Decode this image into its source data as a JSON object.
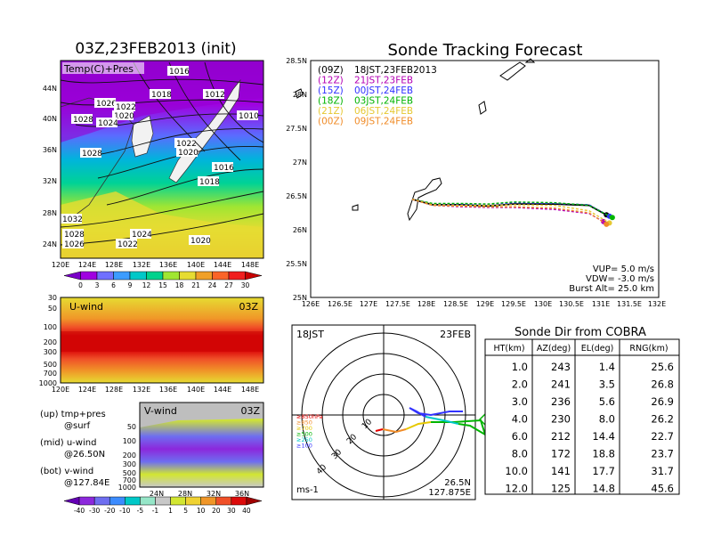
{
  "left_title": "03Z,23FEB2013 (init)",
  "main_title": "Sonde Tracking Forecast",
  "panel_labels": {
    "temp_pres": "Temp(C)+Pres",
    "uwind": "U-wind",
    "uwind_time": "03Z",
    "vwind": "V-wind",
    "vwind_time": "03Z"
  },
  "map_labels": {
    "lat": [
      "44N",
      "40N",
      "36N",
      "32N",
      "28N",
      "24N"
    ],
    "lon": [
      "120E",
      "124E",
      "128E",
      "132E",
      "136E",
      "140E",
      "144E",
      "148E"
    ]
  },
  "isobars": [
    "1016",
    "1018",
    "1012",
    "1010",
    "1026",
    "1022",
    "1028",
    "1020",
    "1024",
    "1028",
    "1022",
    "1020",
    "1016",
    "1018",
    "1032",
    "1028",
    "1024",
    "1026",
    "1022",
    "1020"
  ],
  "temp_colorbar": {
    "labels": [
      "0",
      "3",
      "6",
      "9",
      "12",
      "15",
      "18",
      "21",
      "24",
      "27",
      "30"
    ],
    "colors": [
      "#7a00c8",
      "#a000e0",
      "#7070ff",
      "#3c9cff",
      "#00c8c8",
      "#00d28c",
      "#a0e632",
      "#e6dc32",
      "#f0a028",
      "#fa6428",
      "#f01e1e",
      "#c80000"
    ]
  },
  "uwind_axis": {
    "p": [
      "30",
      "50",
      "100",
      "200",
      "300",
      "500",
      "700",
      "1000"
    ],
    "lon": [
      "120E",
      "124E",
      "128E",
      "132E",
      "136E",
      "140E",
      "144E",
      "148E"
    ]
  },
  "vwind_axis": {
    "p": [
      "50",
      "100",
      "200",
      "300",
      "500",
      "700",
      "1000"
    ],
    "lat": [
      "24N",
      "28N",
      "32N",
      "36N"
    ]
  },
  "wind_colorbar": {
    "labels": [
      "-40",
      "-30",
      "-20",
      "-10",
      "-5",
      "-1",
      "1",
      "5",
      "10",
      "20",
      "30",
      "40"
    ],
    "colors": [
      "#6400b4",
      "#8c28dc",
      "#6e6ef0",
      "#3c8cff",
      "#00c8c8",
      "#96e6c8",
      "#c8c8c8",
      "#d2e632",
      "#f0d232",
      "#f09628",
      "#f05028",
      "#dc0a0a",
      "#a00000"
    ]
  },
  "legend_notes": {
    "up": "(up) tmp+pres",
    "up2": "@surf",
    "mid": "(mid) u-wind",
    "mid2": "@26.50N",
    "bot": "(bot) v-wind",
    "bot2": "@127.84E"
  },
  "track_legend": [
    {
      "z": "(09Z)",
      "text": "18JST,23FEB2013",
      "color": "#000000"
    },
    {
      "z": "(12Z)",
      "text": "21JST,23FEB",
      "color": "#b400b4"
    },
    {
      "z": "(15Z)",
      "text": "00JST,24FEB",
      "color": "#3232ff"
    },
    {
      "z": "(18Z)",
      "text": "03JST,24FEB",
      "color": "#00b400"
    },
    {
      "z": "(21Z)",
      "text": "06JST,24FEB",
      "color": "#e6c832"
    },
    {
      "z": "(00Z)",
      "text": "09JST,24FEB",
      "color": "#f08c28"
    }
  ],
  "track_params": {
    "vup": "VUP= 5.0 m/s",
    "vdw": "VDW= -3.0 m/s",
    "burst": "Burst Alt= 25.0 km"
  },
  "chart_data": {
    "type": "line",
    "title": "Sonde Tracking Forecast",
    "xlim": [
      126,
      132
    ],
    "ylim": [
      25,
      28.5
    ],
    "x_ticks": [
      "126E",
      "126.5E",
      "127E",
      "127.5E",
      "128E",
      "128.5E",
      "129E",
      "129.5E",
      "130E",
      "130.5E",
      "131E",
      "131.5E",
      "132E"
    ],
    "y_ticks": [
      "28.5N",
      "28N",
      "27.5N",
      "27N",
      "26.5N",
      "26N",
      "25.5N",
      "25N"
    ],
    "series": [
      {
        "name": "(09Z) 18JST,23FEB2013",
        "color": "#000000",
        "x": [
          127.75,
          128.1,
          128.6,
          129.05,
          129.5,
          130.2,
          130.8,
          131.1
        ],
        "y": [
          26.45,
          26.37,
          26.37,
          26.35,
          26.38,
          26.38,
          26.36,
          26.22
        ]
      },
      {
        "name": "(12Z) 21JST,23FEB",
        "color": "#b400b4",
        "x": [
          127.75,
          128.1,
          128.6,
          129.05,
          129.5,
          130.2,
          130.8,
          131.05
        ],
        "y": [
          26.45,
          26.36,
          26.34,
          26.33,
          26.33,
          26.3,
          26.24,
          26.12
        ]
      },
      {
        "name": "(15Z) 00JST,24FEB",
        "color": "#3232ff",
        "x": [
          127.75,
          128.1,
          128.6,
          129.05,
          129.5,
          130.2,
          130.8,
          131.15
        ],
        "y": [
          26.45,
          26.38,
          26.38,
          26.37,
          26.4,
          26.39,
          26.37,
          26.2
        ]
      },
      {
        "name": "(18Z) 03JST,24FEB",
        "color": "#00b400",
        "x": [
          127.75,
          128.1,
          128.6,
          129.05,
          129.5,
          130.2,
          130.8,
          131.2
        ],
        "y": [
          26.45,
          26.39,
          26.39,
          26.38,
          26.41,
          26.4,
          26.36,
          26.18
        ]
      },
      {
        "name": "(21Z) 06JST,24FEB",
        "color": "#e6c832",
        "x": [
          127.75,
          128.1,
          128.6,
          129.05,
          129.5,
          130.2,
          130.8,
          131.15
        ],
        "y": [
          26.45,
          26.37,
          26.36,
          26.36,
          26.37,
          26.36,
          26.28,
          26.1
        ]
      },
      {
        "name": "(00Z) 09JST,24FEB",
        "color": "#f08c28",
        "x": [
          127.75,
          128.1,
          128.6,
          129.05,
          129.5,
          130.2,
          130.8,
          131.1
        ],
        "y": [
          26.45,
          26.36,
          26.35,
          26.34,
          26.34,
          26.32,
          26.25,
          26.08
        ]
      }
    ]
  },
  "polar": {
    "time": "18JST",
    "date": "23FEB",
    "coord1": "26.5N",
    "coord2": "127.875E",
    "unit": "ms-1",
    "ring_labels": [
      "10",
      "20",
      "30",
      "40"
    ],
    "levels": [
      {
        "t": "≥850hPa",
        "c": "#e60000"
      },
      {
        "t": "≥850",
        "c": "#f08c28"
      },
      {
        "t": "≥700",
        "c": "#e6c800"
      },
      {
        "t": "≥500",
        "c": "#00b400"
      },
      {
        "t": "≥250",
        "c": "#00c8c8"
      },
      {
        "t": "≥100",
        "c": "#3232ff"
      }
    ]
  },
  "cobra_table": {
    "title": "Sonde Dir from COBRA",
    "headers": [
      "HT(km)",
      "AZ(deg)",
      "EL(deg)",
      "RNG(km)"
    ],
    "rows": [
      [
        "1.0",
        "243",
        "1.4",
        "25.6"
      ],
      [
        "2.0",
        "241",
        "3.5",
        "26.8"
      ],
      [
        "3.0",
        "236",
        "5.6",
        "26.9"
      ],
      [
        "4.0",
        "230",
        "8.0",
        "26.2"
      ],
      [
        "6.0",
        "212",
        "14.4",
        "22.7"
      ],
      [
        "8.0",
        "172",
        "18.8",
        "23.7"
      ],
      [
        "10.0",
        "141",
        "17.7",
        "31.7"
      ],
      [
        "12.0",
        "125",
        "14.8",
        "45.6"
      ]
    ]
  }
}
